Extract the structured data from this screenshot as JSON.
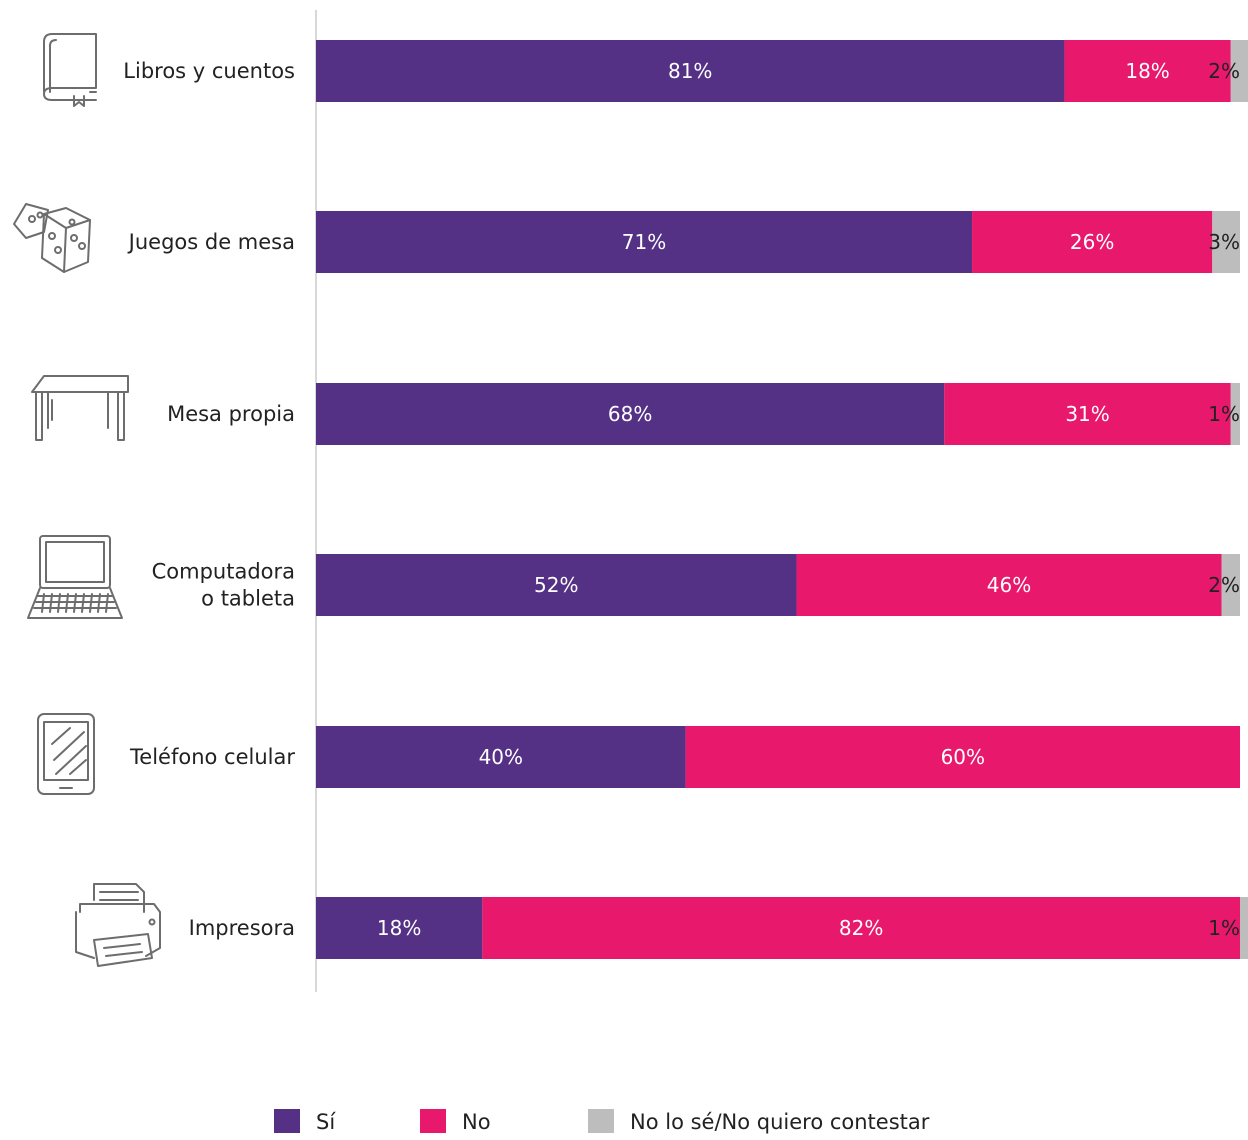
{
  "chart_data": {
    "type": "bar",
    "orientation": "horizontal",
    "stacked": true,
    "percent": true,
    "xlim": [
      0,
      100
    ],
    "grid": false,
    "legend_position": "bottom",
    "categories": [
      {
        "label_lines": [
          "Libros y cuentos"
        ],
        "icon": "book-icon"
      },
      {
        "label_lines": [
          "Juegos de mesa"
        ],
        "icon": "dice-icon"
      },
      {
        "label_lines": [
          "Mesa propia"
        ],
        "icon": "table-icon"
      },
      {
        "label_lines": [
          "Computadora",
          "o tableta"
        ],
        "icon": "laptop-icon"
      },
      {
        "label_lines": [
          "Teléfono celular"
        ],
        "icon": "phone-icon"
      },
      {
        "label_lines": [
          "Impresora"
        ],
        "icon": "printer-icon"
      }
    ],
    "series": [
      {
        "name": "Sí",
        "color": "#553186",
        "label_color": "#ffffff",
        "values": [
          81,
          71,
          68,
          52,
          40,
          18
        ],
        "labels": [
          "81%",
          "71%",
          "68%",
          "52%",
          "40%",
          "18%"
        ]
      },
      {
        "name": "No",
        "color": "#e8196c",
        "label_color": "#ffffff",
        "values": [
          18,
          26,
          31,
          46,
          60,
          82
        ],
        "labels": [
          "18%",
          "26%",
          "31%",
          "46%",
          "60%",
          "82%"
        ]
      },
      {
        "name": "No lo sé/No quiero contestar",
        "color": "#bdbdbd",
        "label_color": "#222222",
        "values": [
          2,
          3,
          1,
          2,
          0,
          1
        ],
        "labels": [
          "2%",
          "3%",
          "1%",
          "2%",
          "",
          "1%"
        ]
      }
    ]
  }
}
